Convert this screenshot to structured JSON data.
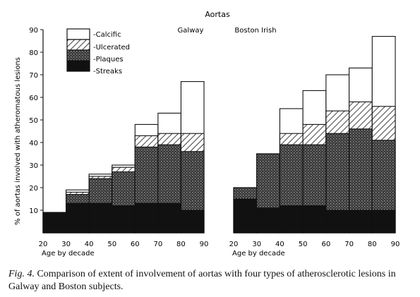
{
  "figure": {
    "title": "Aortas",
    "caption_label": "Fig. 4.",
    "caption_text": " Comparison of extent of involvement of aortas with four types of atherosclerotic lesions in Galway and Boston subjects."
  },
  "chart_data": {
    "type": "bar",
    "stacked": true,
    "title": "Aortas",
    "ylabel": "% of aortas involved with atheromatous lesions",
    "xlabel": "Age by decade",
    "ylim": [
      0,
      90
    ],
    "yticks": [
      10,
      20,
      30,
      40,
      50,
      60,
      70,
      80,
      90
    ],
    "xticks": [
      20,
      30,
      40,
      50,
      60,
      70,
      80,
      90
    ],
    "legend": {
      "placement": "top-left",
      "entries": [
        {
          "key": "calcific",
          "label": "-Calcific"
        },
        {
          "key": "ulcerated",
          "label": "-Ulcerated"
        },
        {
          "key": "plaques",
          "label": "-Plaques"
        },
        {
          "key": "streaks",
          "label": "-Streaks"
        }
      ]
    },
    "colors": {
      "calcific": "#ffffff",
      "ulcerated": "#ffffff",
      "plaques": "#4a4a4a",
      "streaks": "#111111",
      "stroke": "#111111"
    },
    "panels": [
      {
        "name": "Galway",
        "bins": [
          {
            "x0": 20,
            "x1": 30,
            "streaks": 9,
            "plaques": 9,
            "ulcerated": 9,
            "calcific": 9
          },
          {
            "x0": 30,
            "x1": 40,
            "streaks": 13,
            "plaques": 17,
            "ulcerated": 18,
            "calcific": 19
          },
          {
            "x0": 40,
            "x1": 50,
            "streaks": 13,
            "plaques": 24,
            "ulcerated": 25,
            "calcific": 26
          },
          {
            "x0": 50,
            "x1": 60,
            "streaks": 12,
            "plaques": 27,
            "ulcerated": 29,
            "calcific": 30
          },
          {
            "x0": 60,
            "x1": 70,
            "streaks": 13,
            "plaques": 38,
            "ulcerated": 43,
            "calcific": 48
          },
          {
            "x0": 70,
            "x1": 80,
            "streaks": 13,
            "plaques": 39,
            "ulcerated": 44,
            "calcific": 53
          },
          {
            "x0": 80,
            "x1": 90,
            "streaks": 10,
            "plaques": 36,
            "ulcerated": 44,
            "calcific": 67
          }
        ]
      },
      {
        "name": "Boston Irish",
        "bins": [
          {
            "x0": 20,
            "x1": 30,
            "streaks": 15,
            "plaques": 20,
            "ulcerated": 20,
            "calcific": 20
          },
          {
            "x0": 30,
            "x1": 40,
            "streaks": 11,
            "plaques": 35,
            "ulcerated": 35,
            "calcific": 35
          },
          {
            "x0": 40,
            "x1": 50,
            "streaks": 12,
            "plaques": 39,
            "ulcerated": 44,
            "calcific": 55
          },
          {
            "x0": 50,
            "x1": 60,
            "streaks": 12,
            "plaques": 39,
            "ulcerated": 48,
            "calcific": 63
          },
          {
            "x0": 60,
            "x1": 70,
            "streaks": 10,
            "plaques": 44,
            "ulcerated": 54,
            "calcific": 70
          },
          {
            "x0": 70,
            "x1": 80,
            "streaks": 10,
            "plaques": 46,
            "ulcerated": 58,
            "calcific": 73
          },
          {
            "x0": 80,
            "x1": 90,
            "streaks": 10,
            "plaques": 41,
            "ulcerated": 56,
            "calcific": 87
          }
        ]
      }
    ]
  }
}
